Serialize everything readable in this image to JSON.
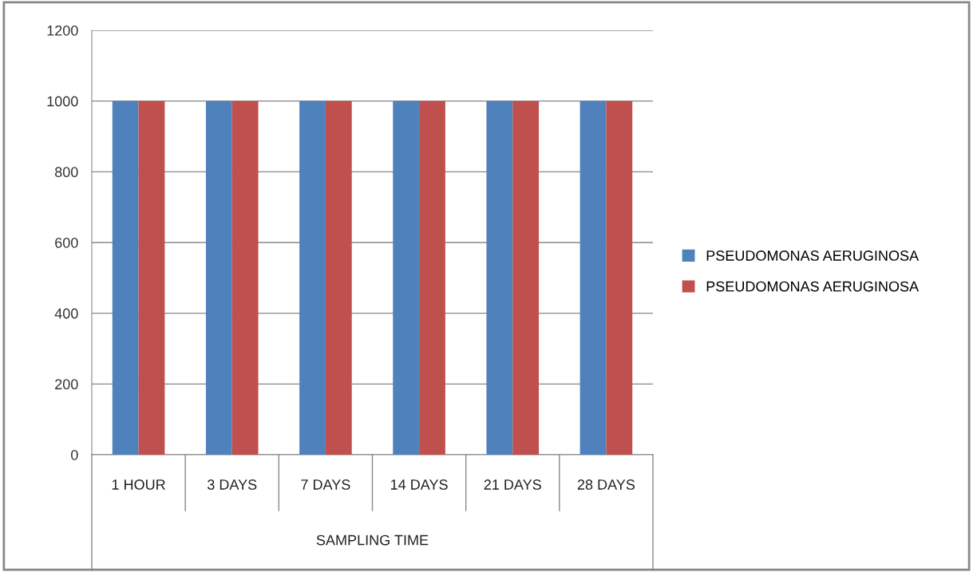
{
  "chart_data": {
    "type": "bar",
    "xlabel": "SAMPLING TIME",
    "categories": [
      "1 HOUR",
      "3 DAYS",
      "7 DAYS",
      "14 DAYS",
      "21 DAYS",
      "28 DAYS"
    ],
    "series": [
      {
        "name": "PSEUDOMONAS AERUGINOSA",
        "color": "#4f81bd",
        "values": [
          1000,
          1000,
          1000,
          1000,
          1000,
          1000
        ]
      },
      {
        "name": "PSEUDOMONAS AERUGINOSA",
        "color": "#c0504d",
        "values": [
          1000,
          1000,
          1000,
          1000,
          1000,
          1000
        ]
      }
    ],
    "ylim": [
      0,
      1200
    ],
    "yticks": [
      0,
      200,
      400,
      600,
      800,
      1000,
      1200
    ],
    "grid": "y",
    "legend": "right"
  }
}
